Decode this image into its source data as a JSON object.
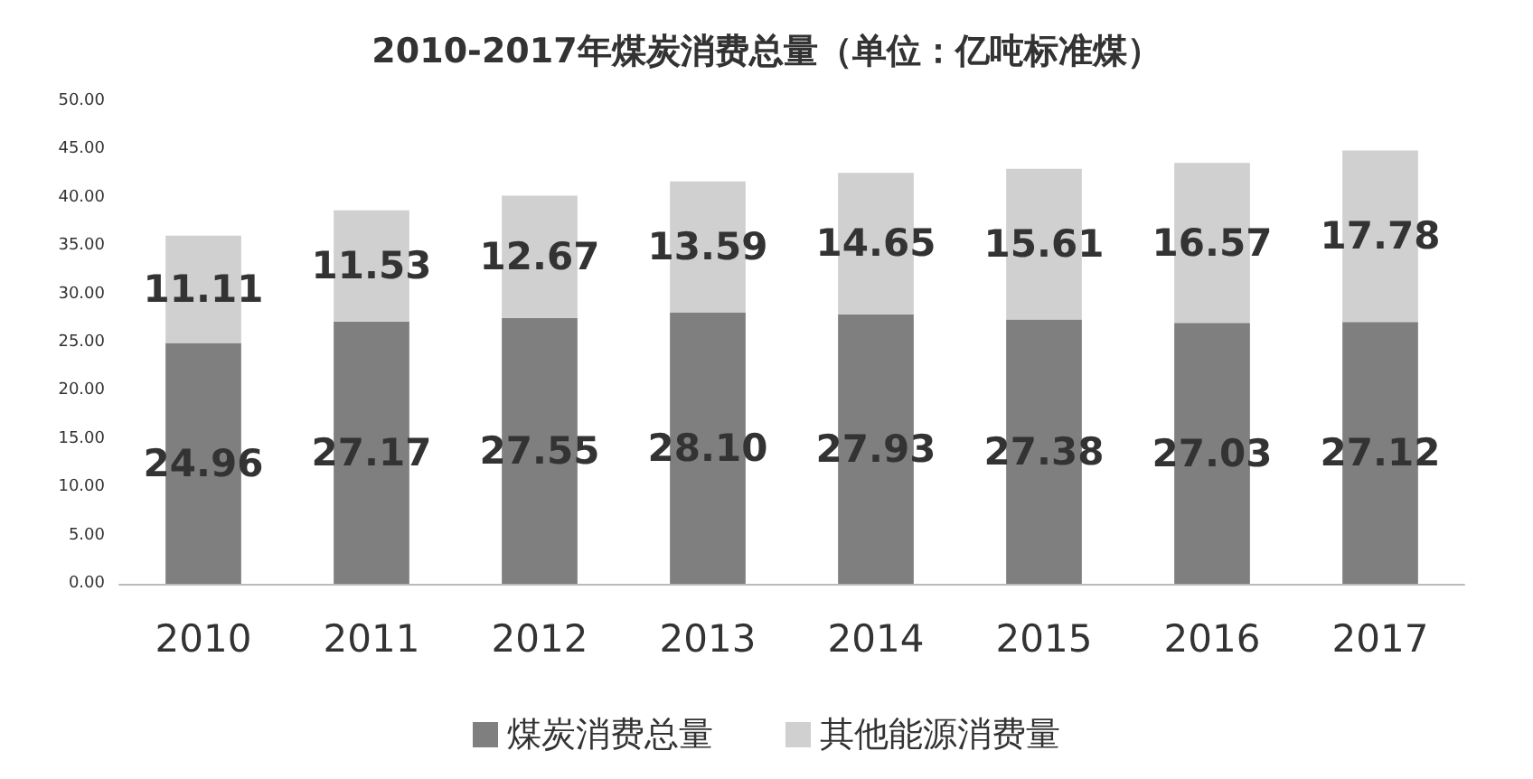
{
  "chart_data": {
    "type": "bar",
    "title": "2010-2017年煤炭消费总量（单位：亿吨标准煤）",
    "categories": [
      "2010",
      "2011",
      "2012",
      "2013",
      "2014",
      "2015",
      "2016",
      "2017"
    ],
    "series": [
      {
        "name": "煤炭消费总量",
        "color": "#7f7f7f",
        "values": [
          24.96,
          27.17,
          27.55,
          28.1,
          27.93,
          27.38,
          27.03,
          27.12
        ],
        "value_labels": [
          "24.96",
          "27.17",
          "27.55",
          "28.10",
          "27.93",
          "27.38",
          "27.03",
          "27.12"
        ]
      },
      {
        "name": "其他能源消费量",
        "color": "#d0d0d0",
        "values": [
          11.11,
          11.53,
          12.67,
          13.59,
          14.65,
          15.61,
          16.57,
          17.78
        ],
        "value_labels": [
          "11.11",
          "11.53",
          "12.67",
          "13.59",
          "14.65",
          "15.61",
          "16.57",
          "17.78"
        ]
      }
    ],
    "stacked": true,
    "ylim": [
      0,
      50
    ],
    "yticks": [
      {
        "value": 0,
        "label": "0.00"
      },
      {
        "value": 5,
        "label": "5.00"
      },
      {
        "value": 10,
        "label": "10.00"
      },
      {
        "value": 15,
        "label": "15.00"
      },
      {
        "value": 20,
        "label": "20.00"
      },
      {
        "value": 25,
        "label": "25.00"
      },
      {
        "value": 30,
        "label": "30.00"
      },
      {
        "value": 35,
        "label": "35.00"
      },
      {
        "value": 40,
        "label": "40.00"
      },
      {
        "value": 45,
        "label": "45.00"
      },
      {
        "value": 50,
        "label": "50.00"
      }
    ],
    "grid": false,
    "legend": "bottom"
  }
}
